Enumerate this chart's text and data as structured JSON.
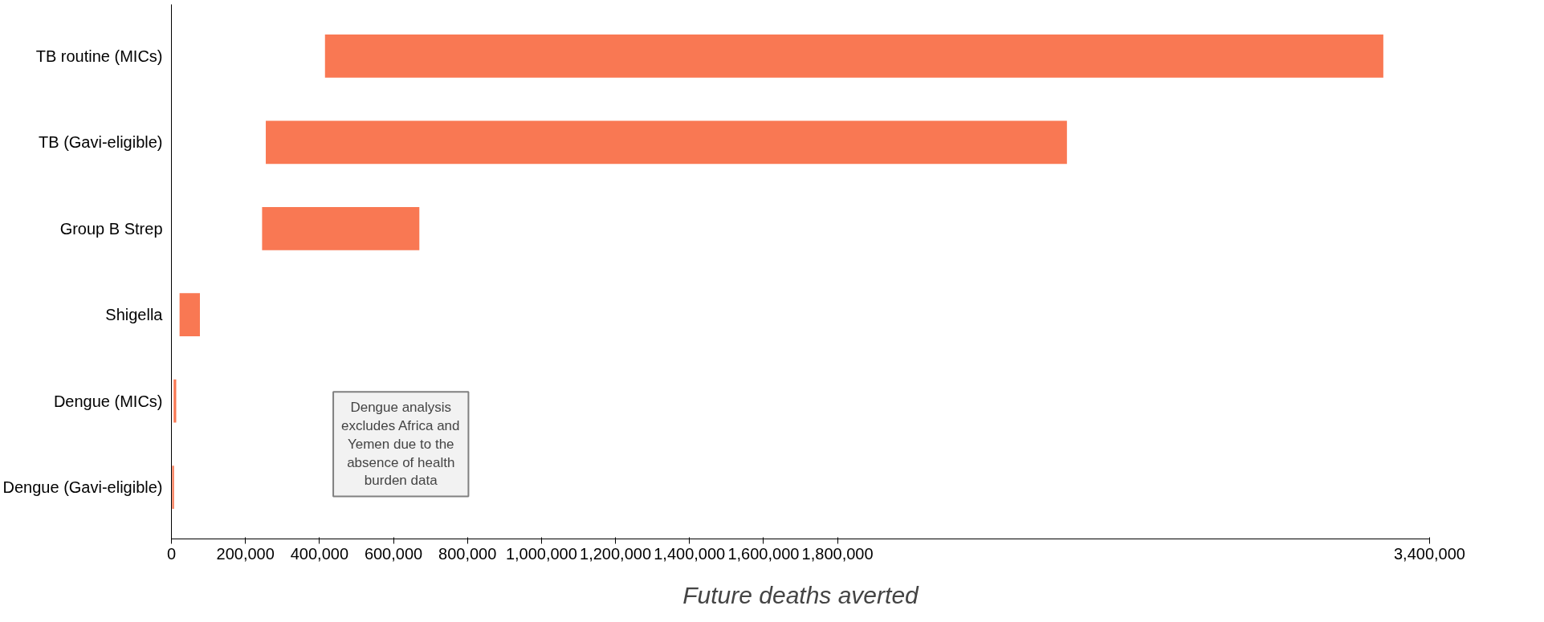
{
  "chart_data": {
    "type": "bar",
    "orientation": "horizontal",
    "xlabel": "Future deaths averted",
    "categories": [
      "TB routine (MICs)",
      "TB (Gavi-eligible)",
      "Group B Strep",
      "Shigella",
      "Dengue (MICs)",
      "Dengue (Gavi-eligible)"
    ],
    "base": [
      415000,
      255000,
      245000,
      22000,
      6000,
      2000
    ],
    "values": [
      2860000,
      2165000,
      425000,
      55000,
      7000,
      5000
    ],
    "color": "#f97853",
    "xlim": [
      0,
      3400000
    ],
    "xticks": [
      0,
      {
        "value": 200000,
        "label": "200,000"
      },
      {
        "value": 400000,
        "label": "400,000"
      },
      {
        "value": 600000,
        "label": "600,000"
      },
      {
        "value": 800000,
        "label": "800,000"
      },
      {
        "value": 1000000,
        "label": "1,000,000"
      },
      {
        "value": 1200000,
        "label": "1,200,000"
      },
      {
        "value": 1400000,
        "label": "1,400,000"
      },
      {
        "value": 1600000,
        "label": "1,600,000"
      },
      {
        "value": 1800000,
        "label": "1,800,000"
      },
      {
        "value": 3400000,
        "label": "3,400,000"
      }
    ],
    "grid": false,
    "annotations": [
      "Dengue analysis excludes Africa and Yemen due to the absence of health burden data"
    ]
  }
}
